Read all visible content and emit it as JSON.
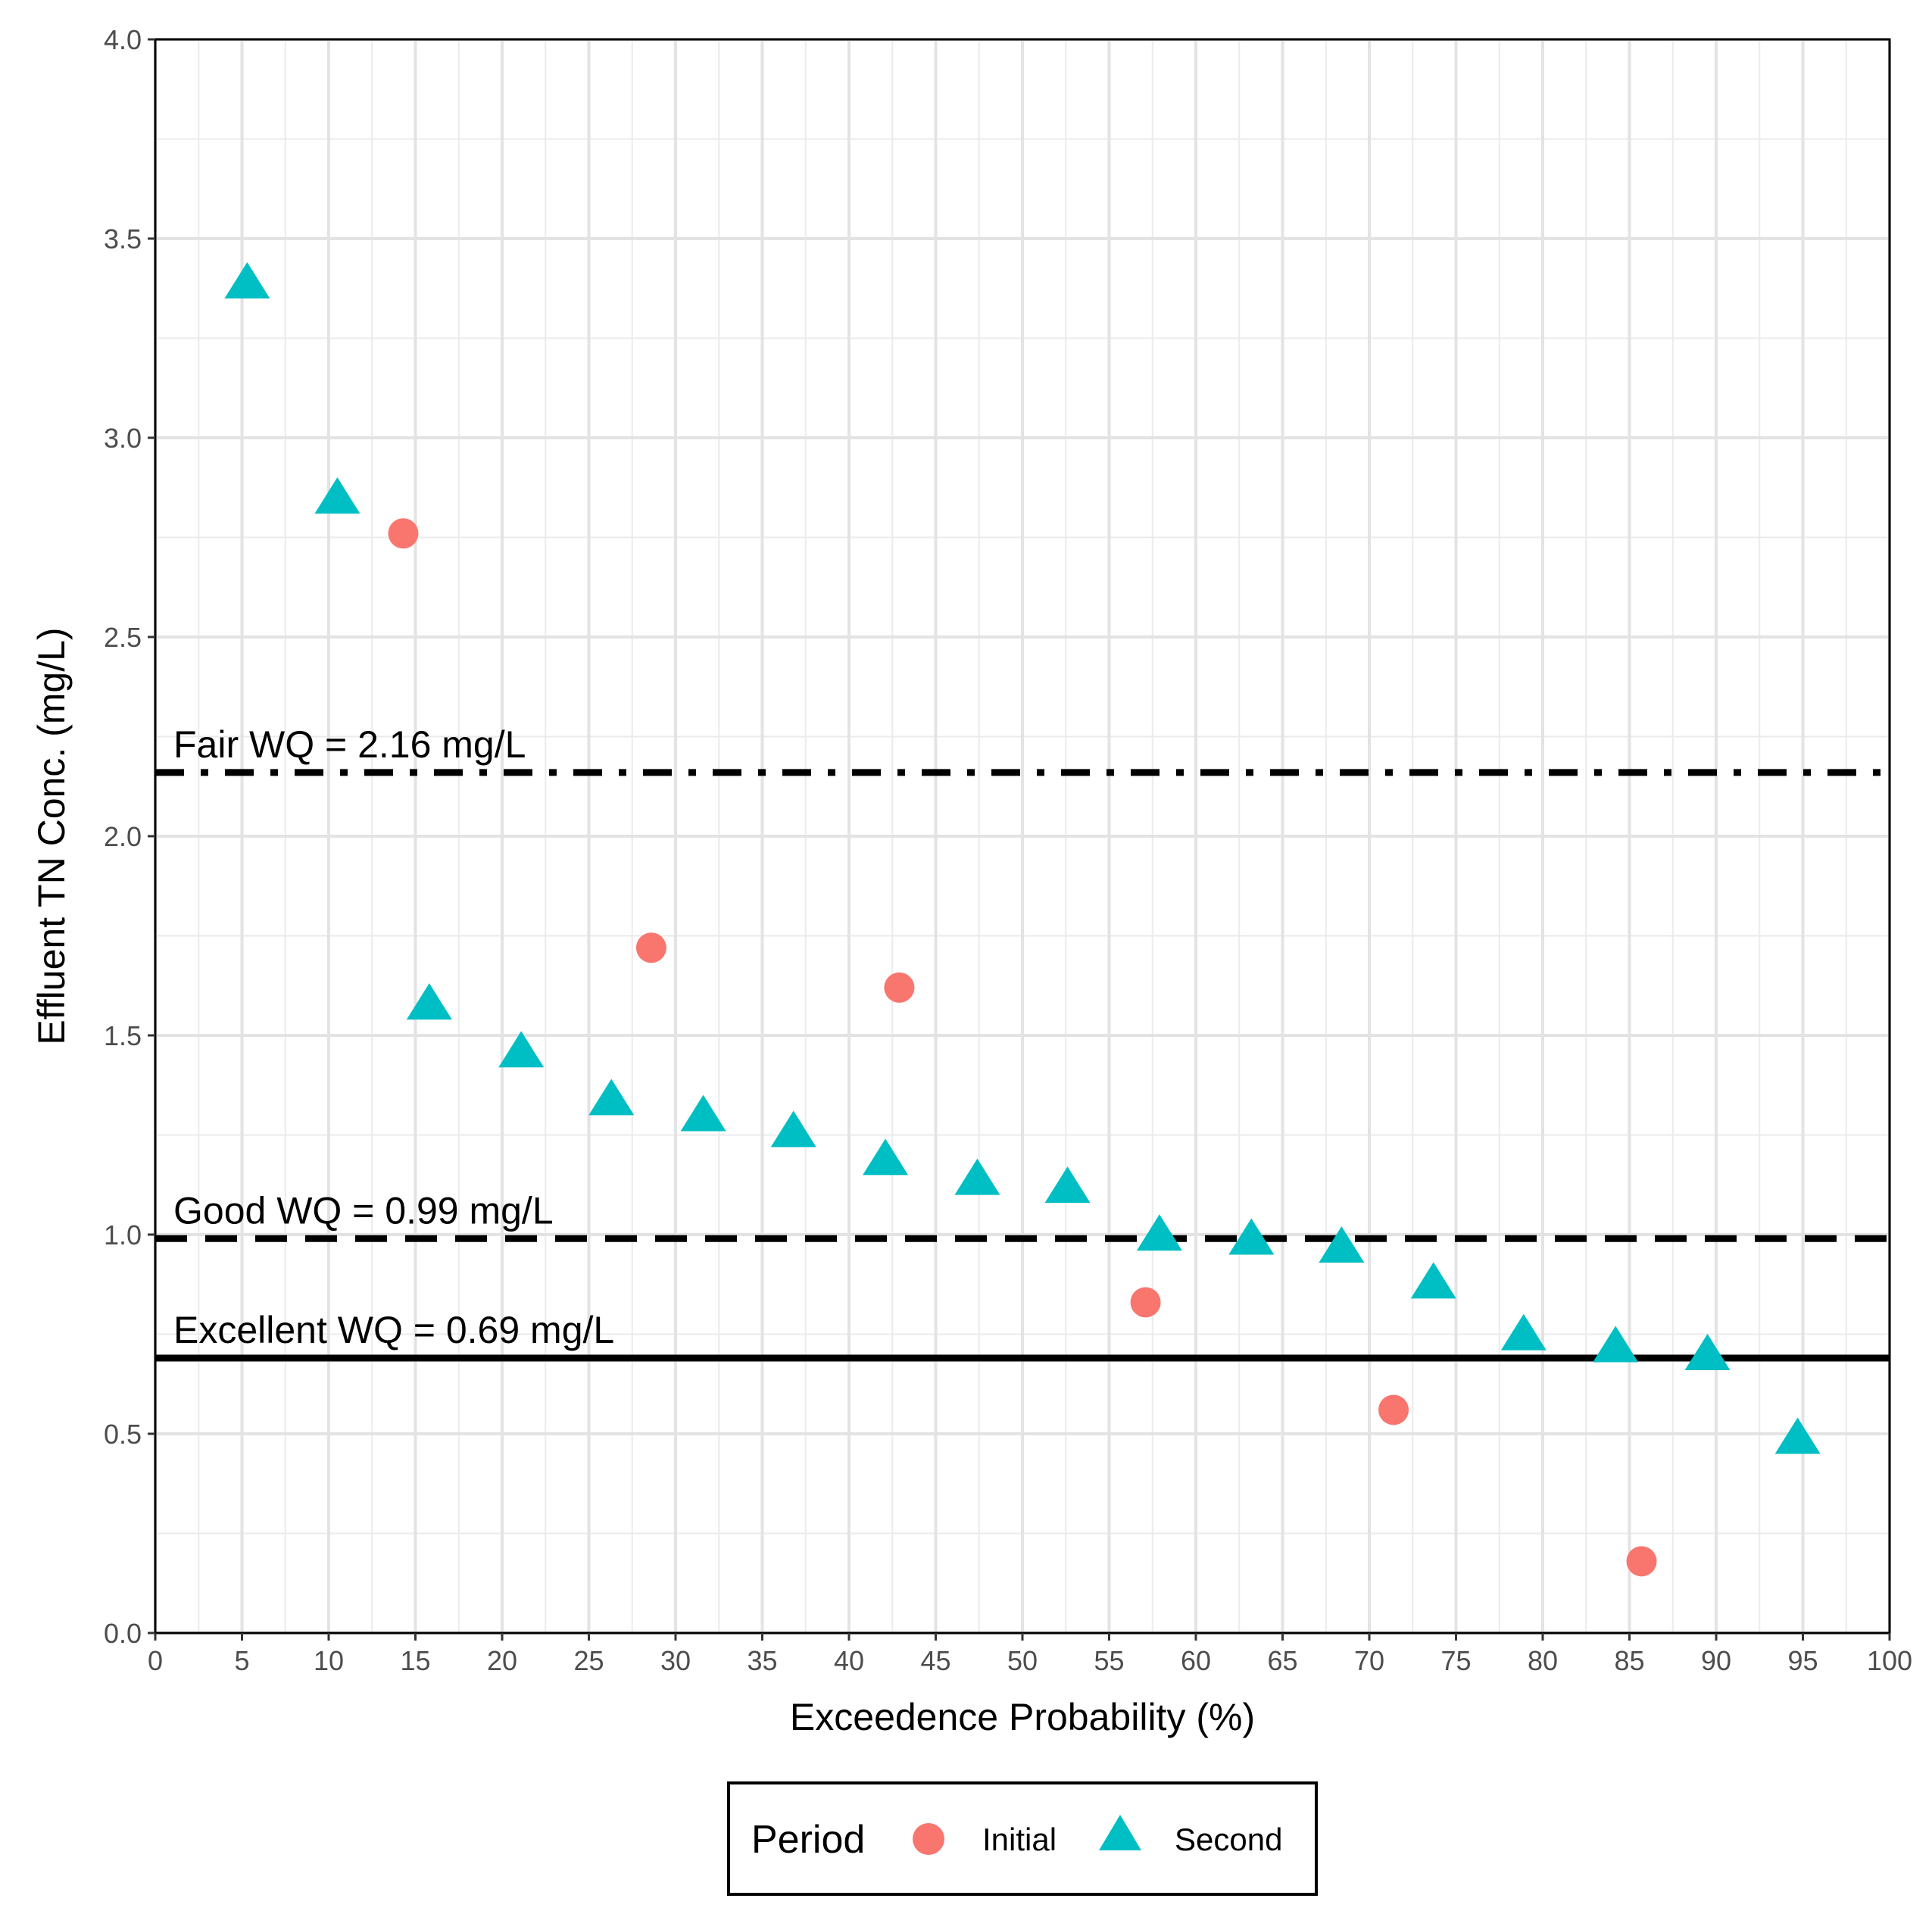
{
  "chart_data": {
    "type": "scatter",
    "title": "",
    "xlabel": "Exceedence Probability (%)",
    "ylabel": "Effluent TN Conc. (mg/L)",
    "xlim": [
      0,
      100
    ],
    "ylim": [
      0,
      4
    ],
    "x_ticks": [
      0,
      5,
      10,
      15,
      20,
      25,
      30,
      35,
      40,
      45,
      50,
      55,
      60,
      65,
      70,
      75,
      80,
      85,
      90,
      95,
      100
    ],
    "y_ticks": [
      0.0,
      0.5,
      1.0,
      1.5,
      2.0,
      2.5,
      3.0,
      3.5,
      4.0
    ],
    "x_tick_labels": [
      "0",
      "5",
      "10",
      "15",
      "20",
      "25",
      "30",
      "35",
      "40",
      "45",
      "50",
      "55",
      "60",
      "65",
      "70",
      "75",
      "80",
      "85",
      "90",
      "95",
      "100"
    ],
    "y_tick_labels": [
      "0.0",
      "0.5",
      "1.0",
      "1.5",
      "2.0",
      "2.5",
      "3.0",
      "3.5",
      "4.0"
    ],
    "grid": true,
    "legend": {
      "title": "Period",
      "position": "bottom",
      "entries": [
        {
          "label": "Initial",
          "shape": "circle",
          "color": "#F8766D"
        },
        {
          "label": "Second",
          "shape": "triangle",
          "color": "#00BFC4"
        }
      ]
    },
    "series": [
      {
        "name": "Initial",
        "shape": "circle",
        "color": "#F8766D",
        "points": [
          {
            "x": 14.3,
            "y": 2.76
          },
          {
            "x": 28.6,
            "y": 1.72
          },
          {
            "x": 42.9,
            "y": 1.62
          },
          {
            "x": 57.1,
            "y": 0.83
          },
          {
            "x": 71.4,
            "y": 0.56
          },
          {
            "x": 85.7,
            "y": 0.18
          }
        ]
      },
      {
        "name": "Second",
        "shape": "triangle",
        "color": "#00BFC4",
        "points": [
          {
            "x": 5.3,
            "y": 3.38
          },
          {
            "x": 10.5,
            "y": 2.84
          },
          {
            "x": 15.8,
            "y": 1.57
          },
          {
            "x": 21.1,
            "y": 1.45
          },
          {
            "x": 26.3,
            "y": 1.33
          },
          {
            "x": 31.6,
            "y": 1.29
          },
          {
            "x": 36.8,
            "y": 1.25
          },
          {
            "x": 42.1,
            "y": 1.18
          },
          {
            "x": 47.4,
            "y": 1.13
          },
          {
            "x": 52.6,
            "y": 1.11
          },
          {
            "x": 57.9,
            "y": 0.99
          },
          {
            "x": 63.2,
            "y": 0.98
          },
          {
            "x": 68.4,
            "y": 0.96
          },
          {
            "x": 73.7,
            "y": 0.87
          },
          {
            "x": 78.9,
            "y": 0.74
          },
          {
            "x": 84.2,
            "y": 0.71
          },
          {
            "x": 89.5,
            "y": 0.69
          },
          {
            "x": 94.7,
            "y": 0.48
          }
        ]
      }
    ],
    "reference_lines": [
      {
        "label": "Fair WQ = 2.16 mg/L",
        "y": 2.16,
        "style": "dotdash"
      },
      {
        "label": "Good WQ = 0.99 mg/L",
        "y": 0.99,
        "style": "dashed"
      },
      {
        "label": "Excellent WQ = 0.69 mg/L",
        "y": 0.69,
        "style": "solid"
      }
    ]
  }
}
